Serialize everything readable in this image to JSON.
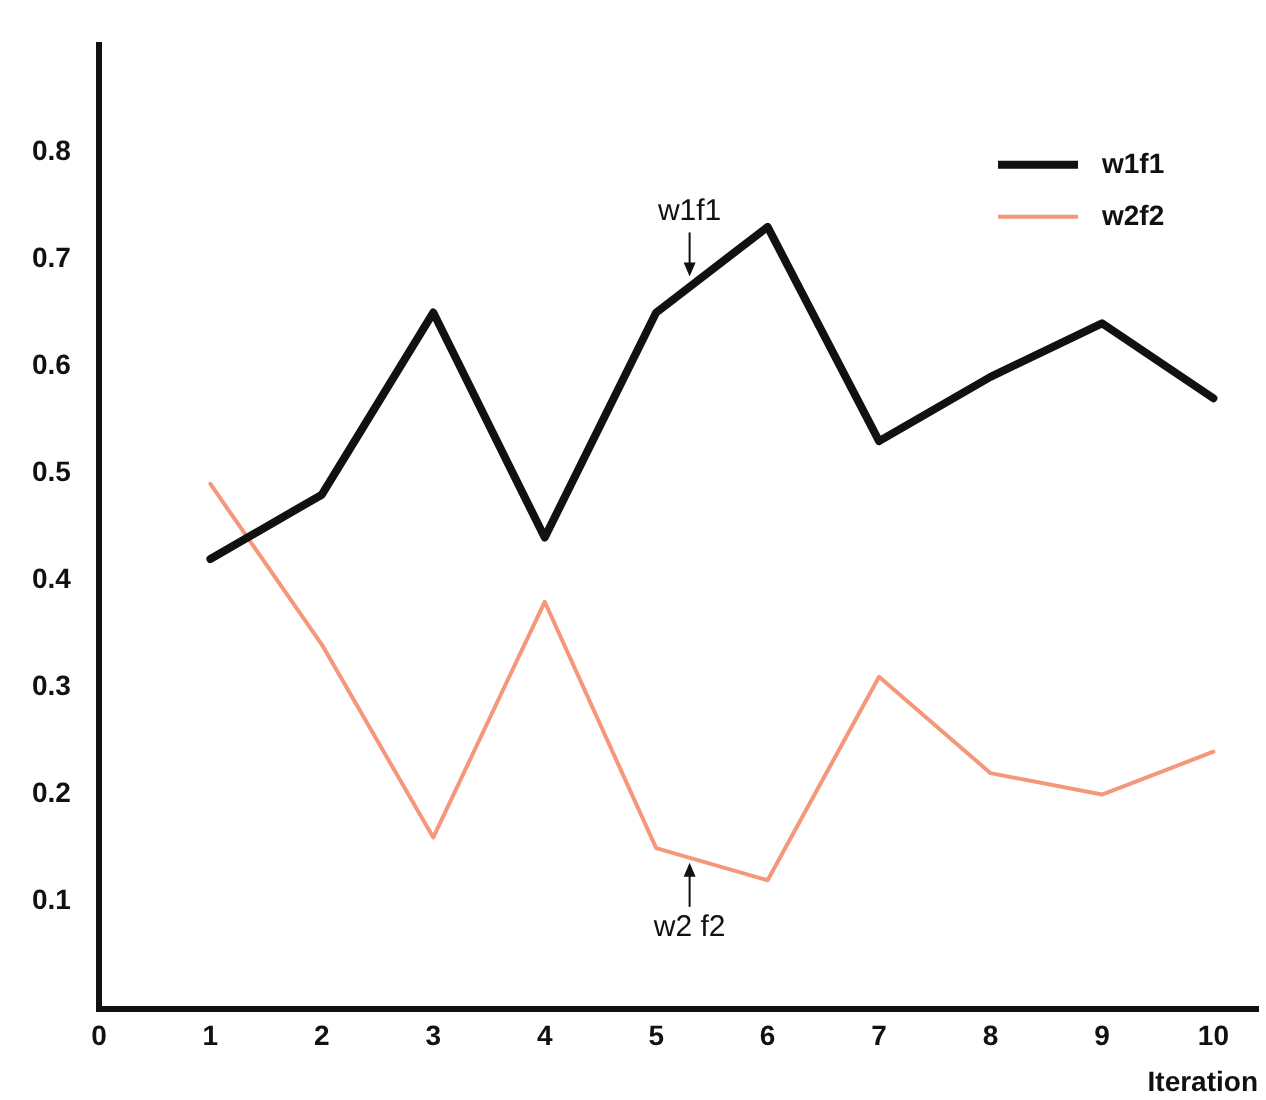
{
  "chart_data": {
    "type": "line",
    "xlabel": "Iteration",
    "x": [
      1,
      2,
      3,
      4,
      5,
      6,
      7,
      8,
      9,
      10
    ],
    "series": [
      {
        "name": "w1f1",
        "color": "#111111",
        "values": [
          0.42,
          0.48,
          0.65,
          0.44,
          0.65,
          0.73,
          0.53,
          0.59,
          0.64,
          0.57
        ]
      },
      {
        "name": "w2f2",
        "color": "#f4977a",
        "values": [
          0.49,
          0.34,
          0.16,
          0.38,
          0.15,
          0.12,
          0.31,
          0.22,
          0.2,
          0.24
        ]
      }
    ],
    "xlim": [
      0,
      10.4
    ],
    "xticks": [
      0,
      1,
      2,
      3,
      4,
      5,
      6,
      7,
      8,
      9,
      10
    ],
    "ylim": [
      0,
      0.9
    ],
    "yticks": [
      0.1,
      0.2,
      0.3,
      0.4,
      0.5,
      0.6,
      0.7,
      0.8
    ],
    "grid": false,
    "legend": "top right",
    "marker": "none",
    "line_style": "solid",
    "annotations": [
      {
        "text": "w1f1",
        "x": 5.3,
        "y": 0.68
      },
      {
        "text": "w2 f2",
        "x": 5.3,
        "y": 0.14
      }
    ]
  }
}
